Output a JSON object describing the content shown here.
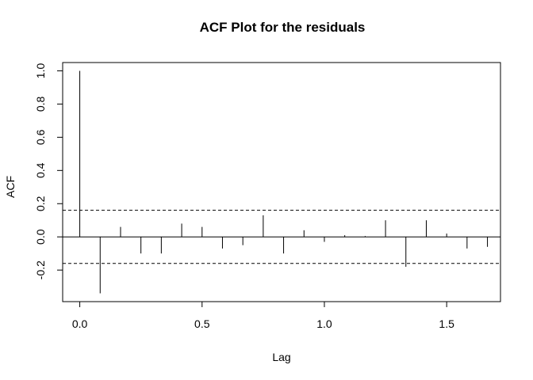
{
  "chart_data": {
    "type": "bar",
    "subtype": "acf-stem",
    "title": "ACF Plot for the residuals",
    "xlabel": "Lag",
    "ylabel": "ACF",
    "xlim": [
      -0.07,
      1.72
    ],
    "ylim": [
      -0.39,
      1.05
    ],
    "x_ticks": [
      0.0,
      0.5,
      1.0,
      1.5
    ],
    "x_tick_labels": [
      "0.0",
      "0.5",
      "1.0",
      "1.5"
    ],
    "y_ticks": [
      -0.2,
      0.0,
      0.2,
      0.4,
      0.6,
      0.8,
      1.0
    ],
    "y_tick_labels": [
      "-0.2",
      "0.0",
      "0.2",
      "0.4",
      "0.6",
      "0.8",
      "1.0"
    ],
    "confidence_band": [
      -0.16,
      0.16
    ],
    "zero_line": true,
    "grid": false,
    "lags": [
      0.0,
      0.0833,
      0.1667,
      0.25,
      0.3333,
      0.4167,
      0.5,
      0.5833,
      0.6667,
      0.75,
      0.8333,
      0.9167,
      1.0,
      1.0833,
      1.1667,
      1.25,
      1.3333,
      1.4167,
      1.5,
      1.5833,
      1.6667
    ],
    "values": [
      1.0,
      -0.34,
      0.06,
      -0.1,
      -0.1,
      0.08,
      0.06,
      -0.07,
      -0.05,
      0.13,
      -0.1,
      0.04,
      -0.03,
      0.01,
      0.005,
      0.1,
      -0.18,
      0.1,
      0.02,
      -0.07,
      -0.06
    ],
    "colors": {
      "stem": "#000000",
      "band": "#000000",
      "axis": "#000000"
    }
  }
}
